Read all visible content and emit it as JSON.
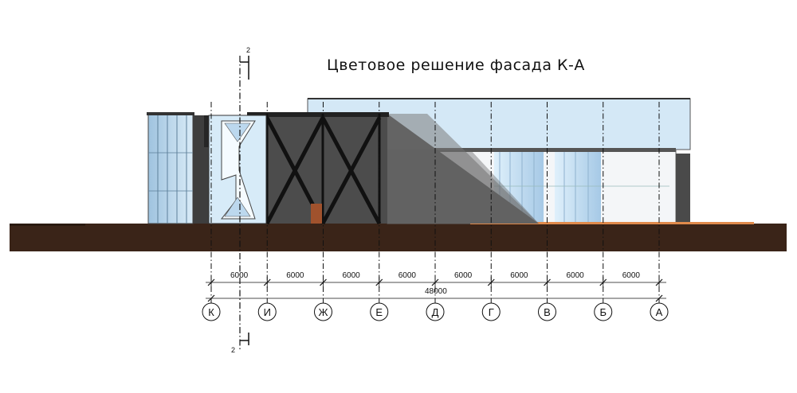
{
  "title": "Цветовое решение фасада  К-А",
  "section_marks": {
    "top": "2",
    "bottom": "2"
  },
  "axes": [
    "К",
    "И",
    "Ж",
    "Е",
    "Д",
    "Г",
    "В",
    "Б",
    "А"
  ],
  "spans": [
    "6000",
    "6000",
    "6000",
    "6000",
    "6000",
    "6000",
    "6000",
    "6000"
  ],
  "overall_dimension": "48000",
  "colors": {
    "ground": "#3a2418",
    "glass_light": "#d4e8f6",
    "glass_blue": "#a9cdea",
    "wall_gray": "#646464",
    "wall_dark": "#4a4a4a",
    "door": "#a0522d",
    "accent": "#e08a4b"
  }
}
